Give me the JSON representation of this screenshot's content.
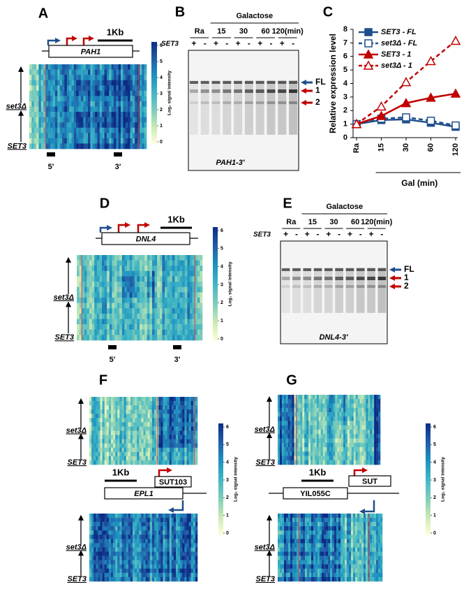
{
  "panels": {
    "A": {
      "letter": "A",
      "scale": "1Kb",
      "gene": "PAH1",
      "strains": [
        "set3Δ",
        "SET3"
      ],
      "probes": [
        "5'",
        "3'"
      ],
      "colorbar": {
        "label": "Log₂ signal intensity",
        "ticks": [
          0,
          1,
          2,
          3,
          4,
          5,
          6
        ]
      }
    },
    "B": {
      "letter": "B",
      "condition": "Galactose",
      "lanes": [
        "Ra",
        "15",
        "30",
        "60",
        "120(min)"
      ],
      "genotype": "SET3",
      "signs": [
        "+",
        "-",
        "+",
        "-",
        "+",
        "-",
        "+",
        "-",
        "+",
        "-"
      ],
      "bands": [
        "FL",
        "1",
        "2"
      ],
      "probe": "PAH1-3'"
    },
    "C": {
      "letter": "C"
    },
    "D": {
      "letter": "D",
      "scale": "1Kb",
      "gene": "DNL4",
      "strains": [
        "set3Δ",
        "SET3"
      ],
      "probes": [
        "5'",
        "3'"
      ],
      "colorbar": {
        "label": "Log₂ signal intensity",
        "ticks": [
          0,
          1,
          2,
          3,
          4,
          5,
          6
        ]
      }
    },
    "E": {
      "letter": "E",
      "condition": "Galactose",
      "lanes": [
        "Ra",
        "15",
        "30",
        "60",
        "120(min)"
      ],
      "genotype": "SET3",
      "signs": [
        "+",
        "-",
        "+",
        "-",
        "+",
        "-",
        "+",
        "-",
        "+",
        "-"
      ],
      "bands": [
        "FL",
        "1",
        "2"
      ],
      "probe": "DNL4-3'"
    },
    "F": {
      "letter": "F",
      "scale": "1Kb",
      "gene": "EPL1",
      "transcript": "SUT103",
      "strains": [
        "set3Δ",
        "SET3"
      ],
      "colorbar": {
        "label": "Log₂ signal intensity",
        "ticks": [
          0,
          1,
          2,
          3,
          4,
          5,
          6
        ]
      }
    },
    "G": {
      "letter": "G",
      "scale": "1Kb",
      "gene": "YIL055C",
      "transcript": "SUT",
      "strains": [
        "set3Δ",
        "SET3"
      ],
      "colorbar": {
        "label": "Log₂ signal intensity",
        "ticks": [
          0,
          1,
          2,
          3,
          4,
          5,
          6
        ]
      }
    }
  },
  "chart_data": {
    "type": "line",
    "ylabel": "Relative expression level",
    "xlabel": "Gal (min)",
    "categories": [
      "Ra",
      "15",
      "30",
      "60",
      "120"
    ],
    "ylim": [
      0,
      8
    ],
    "yticks": [
      0,
      1,
      2,
      3,
      4,
      5,
      6,
      7,
      8
    ],
    "series": [
      {
        "name": "SET3 - FL",
        "color": "#1f4e8c",
        "dashed": false,
        "marker": "square",
        "filled": true,
        "values": [
          1,
          1.3,
          1.35,
          1.1,
          0.8
        ]
      },
      {
        "name": "set3Δ - FL",
        "color": "#1f4e8c",
        "dashed": true,
        "marker": "square",
        "filled": false,
        "values": [
          1,
          1.4,
          1.5,
          1.25,
          0.9
        ]
      },
      {
        "name": "SET3 - 1",
        "color": "#c00000",
        "dashed": false,
        "marker": "triangle",
        "filled": true,
        "values": [
          1,
          1.6,
          2.55,
          2.95,
          3.25
        ]
      },
      {
        "name": "set3Δ - 1",
        "color": "#c00000",
        "dashed": true,
        "marker": "triangle",
        "filled": false,
        "values": [
          1,
          2.3,
          4.1,
          5.65,
          7.15
        ]
      }
    ]
  }
}
